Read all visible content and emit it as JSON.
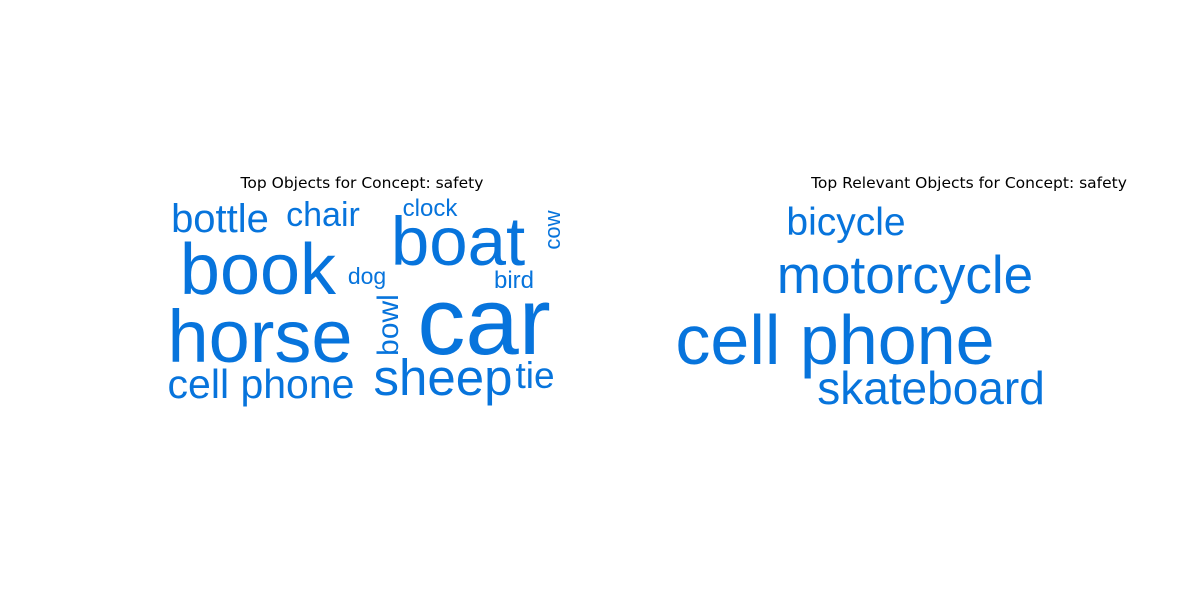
{
  "colors": {
    "word": "#0774dc",
    "title": "#000000",
    "background": "#ffffff"
  },
  "chart_data": [
    {
      "type": "wordcloud",
      "title": "Top Objects for Concept: safety",
      "words": [
        {
          "text": "car",
          "weight": 100
        },
        {
          "text": "horse",
          "weight": 78
        },
        {
          "text": "book",
          "weight": 76
        },
        {
          "text": "boat",
          "weight": 73
        },
        {
          "text": "sheep",
          "weight": 58
        },
        {
          "text": "cell phone",
          "weight": 45
        },
        {
          "text": "bottle",
          "weight": 44
        },
        {
          "text": "chair",
          "weight": 37
        },
        {
          "text": "tie",
          "weight": 40
        },
        {
          "text": "bowl",
          "weight": 33
        },
        {
          "text": "clock",
          "weight": 27
        },
        {
          "text": "bird",
          "weight": 27
        },
        {
          "text": "dog",
          "weight": 25
        },
        {
          "text": "cow",
          "weight": 24
        }
      ]
    },
    {
      "type": "wordcloud",
      "title": "Top Relevant Objects for Concept: safety",
      "words": [
        {
          "text": "cell phone",
          "weight": 100
        },
        {
          "text": "motorcycle",
          "weight": 76
        },
        {
          "text": "skateboard",
          "weight": 68
        },
        {
          "text": "bicycle",
          "weight": 64
        }
      ]
    }
  ]
}
